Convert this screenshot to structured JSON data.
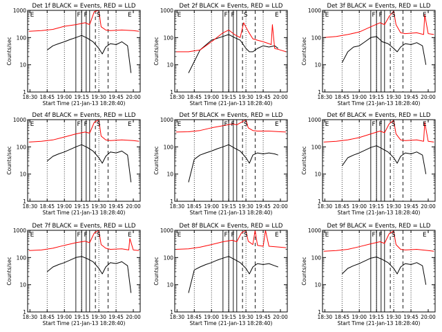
{
  "page": {
    "background": "#ffffff"
  },
  "legend_colors": {
    "events": "#000000",
    "lld": "#ff0000"
  },
  "common": {
    "ylabel": "Counts/sec",
    "xlabel": "Start Time (21-Jan-13 18:28:40)",
    "y_ticks": [
      "1",
      "10",
      "100",
      "1000"
    ],
    "x_ticks": [
      "18:30",
      "18:45",
      "19:00",
      "19:15",
      "19:30",
      "19:45",
      "20:00"
    ],
    "yscale": "log",
    "ylim": [
      1,
      1000
    ],
    "xlim_minutes": [
      -2,
      96
    ],
    "marker_labels": {
      "F": "F",
      "S": "S",
      "E": "E"
    },
    "dotted_times_minutes": [
      15,
      30,
      45,
      60,
      75
    ]
  },
  "chart_data": [
    {
      "type": "line",
      "title": "Det 1f BLACK = Events, RED = LLD",
      "solid_lines": [
        40,
        45,
        49,
        52
      ],
      "dashed_lines": [
        57,
        68
      ],
      "marker_F": [
        41,
        47
      ],
      "marker_S": 58,
      "marker_E": [
        -1,
        84
      ],
      "series": [
        {
          "color": "#000000",
          "x": [
            15,
            20,
            25,
            30,
            35,
            40,
            45,
            50,
            55,
            60,
            63,
            66,
            70,
            75,
            80,
            85,
            88
          ],
          "values": [
            35,
            50,
            60,
            70,
            85,
            100,
            120,
            95,
            70,
            40,
            25,
            45,
            60,
            55,
            70,
            50,
            5
          ]
        },
        {
          "color": "#ff0000",
          "x": [
            -1,
            10,
            20,
            30,
            40,
            48,
            52,
            56,
            60,
            62,
            66,
            70,
            80,
            90,
            95
          ],
          "values": [
            170,
            180,
            200,
            260,
            300,
            350,
            300,
            900,
            1000,
            250,
            190,
            180,
            190,
            180,
            170
          ]
        }
      ]
    },
    {
      "type": "line",
      "title": "Det 2f BLACK = Events, RED = LLD",
      "solid_lines": [
        40,
        45,
        49,
        52
      ],
      "dashed_lines": [
        57,
        68
      ],
      "marker_F": [
        41,
        47
      ],
      "marker_S": 58,
      "marker_E": [
        -1,
        84
      ],
      "series": [
        {
          "color": "#000000",
          "x": [
            10,
            20,
            30,
            40,
            45,
            50,
            55,
            60,
            63,
            66,
            70,
            75,
            80,
            85,
            88
          ],
          "values": [
            5,
            35,
            80,
            110,
            130,
            100,
            80,
            40,
            30,
            30,
            40,
            50,
            45,
            50,
            40
          ]
        },
        {
          "color": "#ff0000",
          "x": [
            -1,
            10,
            20,
            30,
            40,
            45,
            50,
            55,
            58,
            62,
            66,
            70,
            75,
            80,
            82,
            83,
            85,
            90,
            95
          ],
          "values": [
            30,
            30,
            35,
            70,
            150,
            190,
            130,
            100,
            350,
            170,
            90,
            80,
            70,
            60,
            55,
            300,
            40,
            35,
            30
          ]
        }
      ]
    },
    {
      "type": "line",
      "title": "Det 3f BLACK = Events, RED = LLD",
      "solid_lines": [
        40,
        45,
        49,
        52
      ],
      "dashed_lines": [
        57,
        68
      ],
      "marker_F": [
        41,
        47
      ],
      "marker_S": 58,
      "marker_E": [
        -1,
        84
      ],
      "series": [
        {
          "color": "#000000",
          "x": [
            15,
            20,
            25,
            30,
            35,
            40,
            45,
            50,
            55,
            60,
            63,
            66,
            70,
            75,
            80,
            85,
            88
          ],
          "values": [
            12,
            30,
            45,
            50,
            70,
            100,
            110,
            70,
            60,
            40,
            30,
            45,
            60,
            55,
            65,
            50,
            10
          ]
        },
        {
          "color": "#ff0000",
          "x": [
            -1,
            10,
            20,
            30,
            40,
            48,
            52,
            56,
            60,
            62,
            66,
            70,
            80,
            86,
            87,
            90,
            95
          ],
          "values": [
            100,
            110,
            130,
            160,
            250,
            350,
            300,
            600,
            950,
            300,
            150,
            140,
            150,
            130,
            700,
            140,
            130
          ]
        }
      ]
    },
    {
      "type": "line",
      "title": "Det 4f BLACK = Events, RED = LLD",
      "solid_lines": [
        40,
        45,
        49,
        52
      ],
      "dashed_lines": [
        57,
        68
      ],
      "marker_F": [
        41,
        47
      ],
      "marker_S": 58,
      "marker_E": [
        -1,
        84
      ],
      "series": [
        {
          "color": "#000000",
          "x": [
            15,
            20,
            25,
            30,
            35,
            40,
            45,
            50,
            55,
            60,
            63,
            66,
            70,
            75,
            80,
            85,
            88
          ],
          "values": [
            30,
            45,
            55,
            65,
            80,
            100,
            120,
            95,
            70,
            40,
            25,
            45,
            65,
            60,
            70,
            50,
            5
          ]
        },
        {
          "color": "#ff0000",
          "x": [
            -1,
            10,
            20,
            30,
            40,
            48,
            52,
            56,
            60,
            62,
            66,
            70,
            80,
            90,
            95
          ],
          "values": [
            150,
            160,
            180,
            230,
            300,
            350,
            320,
            800,
            1000,
            250,
            180,
            170,
            180,
            170,
            160
          ]
        }
      ]
    },
    {
      "type": "line",
      "title": "Det 5f BLACK = Events, RED = LLD",
      "solid_lines": [
        40,
        45,
        49,
        52
      ],
      "dashed_lines": [
        57,
        68
      ],
      "marker_F": [
        41,
        47
      ],
      "marker_S": 58,
      "marker_E": [
        -1,
        84
      ],
      "series": [
        {
          "color": "#000000",
          "x": [
            10,
            15,
            20,
            25,
            30,
            35,
            40,
            45,
            50,
            55,
            60,
            63,
            66,
            70,
            75,
            80,
            85,
            88
          ],
          "values": [
            5,
            35,
            50,
            60,
            70,
            85,
            100,
            120,
            90,
            70,
            40,
            25,
            50,
            60,
            55,
            60,
            55,
            50
          ]
        },
        {
          "color": "#ff0000",
          "x": [
            -1,
            10,
            20,
            30,
            40,
            48,
            52,
            56,
            60,
            62,
            66,
            70,
            80,
            90,
            95
          ],
          "values": [
            350,
            360,
            400,
            500,
            600,
            700,
            650,
            800,
            1000,
            500,
            400,
            380,
            380,
            360,
            350
          ]
        }
      ]
    },
    {
      "type": "line",
      "title": "Det 6f BLACK = Events, RED = LLD",
      "solid_lines": [
        40,
        45,
        49,
        52
      ],
      "dashed_lines": [
        57,
        68
      ],
      "marker_F": [
        41,
        47
      ],
      "marker_S": 58,
      "marker_E": [
        -1,
        84
      ],
      "series": [
        {
          "color": "#000000",
          "x": [
            15,
            20,
            25,
            30,
            35,
            40,
            45,
            50,
            55,
            60,
            63,
            66,
            70,
            75,
            80,
            85,
            88
          ],
          "values": [
            20,
            40,
            50,
            60,
            75,
            95,
            110,
            85,
            65,
            40,
            25,
            45,
            60,
            55,
            65,
            50,
            10
          ]
        },
        {
          "color": "#ff0000",
          "x": [
            -1,
            10,
            20,
            30,
            40,
            48,
            52,
            56,
            60,
            62,
            66,
            70,
            80,
            86,
            87,
            90,
            95
          ],
          "values": [
            150,
            160,
            180,
            220,
            300,
            380,
            330,
            700,
            950,
            300,
            180,
            170,
            180,
            160,
            800,
            160,
            150
          ]
        }
      ]
    },
    {
      "type": "line",
      "title": "Det 7f BLACK = Events, RED = LLD",
      "solid_lines": [
        40,
        45,
        49,
        52
      ],
      "dashed_lines": [
        57,
        68
      ],
      "marker_F": [
        41,
        47
      ],
      "marker_S": 58,
      "marker_E": [
        -1,
        84
      ],
      "series": [
        {
          "color": "#000000",
          "x": [
            15,
            20,
            25,
            30,
            35,
            40,
            45,
            50,
            55,
            60,
            63,
            66,
            70,
            75,
            80,
            85,
            88
          ],
          "values": [
            30,
            45,
            55,
            65,
            80,
            100,
            110,
            90,
            70,
            40,
            25,
            45,
            65,
            60,
            70,
            50,
            5
          ]
        },
        {
          "color": "#ff0000",
          "x": [
            -1,
            10,
            20,
            30,
            40,
            48,
            52,
            56,
            60,
            62,
            66,
            70,
            80,
            86,
            87,
            90,
            95
          ],
          "values": [
            180,
            190,
            220,
            280,
            350,
            400,
            350,
            800,
            1000,
            300,
            220,
            200,
            210,
            190,
            500,
            190,
            180
          ]
        }
      ]
    },
    {
      "type": "line",
      "title": "Det 8f BLACK = Events, RED = LLD",
      "solid_lines": [
        40,
        45,
        49,
        52
      ],
      "dashed_lines": [
        57,
        68
      ],
      "marker_F": [
        41,
        47
      ],
      "marker_S": 58,
      "marker_E": [
        -1,
        84
      ],
      "series": [
        {
          "color": "#000000",
          "x": [
            10,
            15,
            20,
            25,
            30,
            35,
            40,
            45,
            50,
            55,
            60,
            63,
            66,
            70,
            75,
            80,
            85,
            88
          ],
          "values": [
            5,
            35,
            45,
            55,
            65,
            80,
            95,
            110,
            85,
            65,
            40,
            25,
            45,
            60,
            55,
            60,
            50,
            45
          ]
        },
        {
          "color": "#ff0000",
          "x": [
            -1,
            10,
            20,
            30,
            40,
            48,
            52,
            56,
            60,
            62,
            66,
            68,
            70,
            75,
            77,
            80,
            90,
            95
          ],
          "values": [
            200,
            210,
            240,
            300,
            380,
            430,
            380,
            800,
            1000,
            400,
            300,
            1000,
            280,
            260,
            1000,
            260,
            240,
            230
          ]
        }
      ]
    },
    {
      "type": "line",
      "title": "Det 9f BLACK = Events, RED = LLD",
      "solid_lines": [
        40,
        45,
        49,
        52
      ],
      "dashed_lines": [
        57,
        68
      ],
      "marker_F": [
        41,
        47
      ],
      "marker_S": 58,
      "marker_E": [
        -1,
        84
      ],
      "series": [
        {
          "color": "#000000",
          "x": [
            15,
            20,
            25,
            30,
            35,
            40,
            45,
            50,
            55,
            60,
            63,
            66,
            70,
            75,
            80,
            85,
            88
          ],
          "values": [
            25,
            40,
            50,
            60,
            75,
            95,
            105,
            85,
            65,
            40,
            25,
            45,
            60,
            55,
            65,
            50,
            10
          ]
        },
        {
          "color": "#ff0000",
          "x": [
            -1,
            10,
            20,
            30,
            40,
            48,
            52,
            56,
            60,
            62,
            66,
            70,
            80,
            90,
            95
          ],
          "values": [
            170,
            180,
            200,
            250,
            320,
            380,
            330,
            750,
            950,
            300,
            200,
            190,
            200,
            180,
            170
          ]
        }
      ]
    }
  ]
}
